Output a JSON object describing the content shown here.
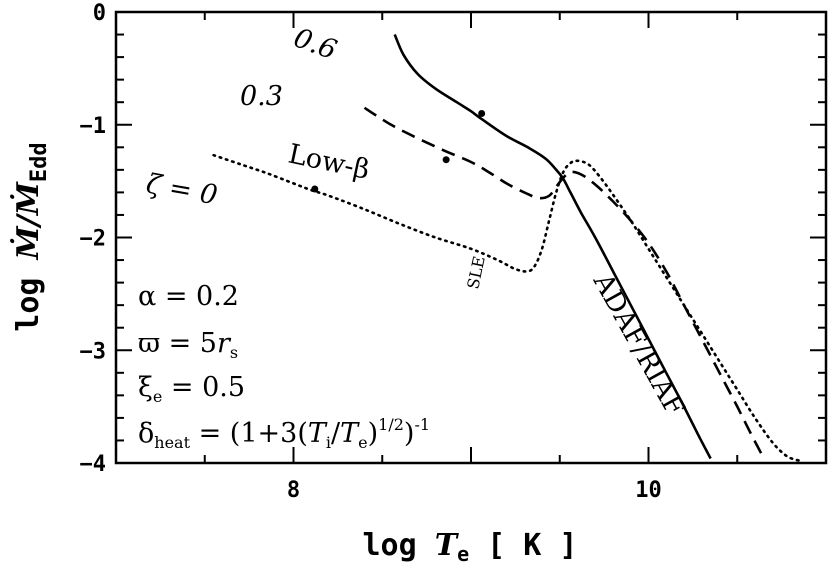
{
  "chart_data": {
    "type": "line",
    "xlabel_main": "log ",
    "xlabel_var": "T",
    "xlabel_sub": "e",
    "xlabel_unit": " [ K ]",
    "ylabel_main": "log ",
    "ylabel_var": "Ṁ/Ṁ",
    "ylabel_sub": "Edd",
    "xlim": [
      7.0,
      11.0
    ],
    "ylim": [
      -4,
      0
    ],
    "xticks": [
      {
        "value": 8,
        "label": "8"
      },
      {
        "value": 10,
        "label": "10"
      }
    ],
    "yticks": [
      {
        "value": 0,
        "label": "0"
      },
      {
        "value": -1,
        "label": "−1"
      },
      {
        "value": -2,
        "label": "−2"
      },
      {
        "value": -3,
        "label": "−3"
      },
      {
        "value": -4,
        "label": "−4"
      }
    ],
    "series": [
      {
        "name": "0.6",
        "style": "solid",
        "x": [
          8.57,
          8.62,
          8.7,
          8.8,
          8.92,
          9.0,
          9.06,
          9.2,
          9.32,
          9.42,
          9.48,
          9.52,
          9.56,
          9.62,
          9.7,
          9.8,
          9.9,
          10.0,
          10.1,
          10.2,
          10.28,
          10.35
        ],
        "y": [
          -0.2,
          -0.38,
          -0.55,
          -0.68,
          -0.8,
          -0.88,
          -0.95,
          -1.1,
          -1.2,
          -1.3,
          -1.4,
          -1.48,
          -1.6,
          -1.78,
          -2.0,
          -2.3,
          -2.6,
          -2.9,
          -3.2,
          -3.5,
          -3.75,
          -3.96
        ]
      },
      {
        "name": "0.3",
        "style": "dashed",
        "x": [
          8.4,
          8.55,
          8.7,
          8.85,
          9.0,
          9.1,
          9.2,
          9.3,
          9.38,
          9.44,
          9.48,
          9.52,
          9.56,
          9.62,
          9.7,
          9.8,
          9.9,
          10.0,
          10.1,
          10.2,
          10.3,
          10.4,
          10.5,
          10.58,
          10.65
        ],
        "y": [
          -0.85,
          -1.0,
          -1.12,
          -1.23,
          -1.33,
          -1.42,
          -1.52,
          -1.6,
          -1.65,
          -1.63,
          -1.55,
          -1.47,
          -1.42,
          -1.44,
          -1.53,
          -1.68,
          -1.85,
          -2.05,
          -2.3,
          -2.6,
          -2.9,
          -3.2,
          -3.5,
          -3.75,
          -3.96
        ]
      },
      {
        "name": "ζ = 0",
        "style": "dotted",
        "x": [
          7.55,
          7.7,
          7.85,
          8.0,
          8.1,
          8.2,
          8.4,
          8.6,
          8.8,
          9.0,
          9.15,
          9.25,
          9.32,
          9.36,
          9.4,
          9.44,
          9.48,
          9.52,
          9.56,
          9.6,
          9.66,
          9.72,
          9.8,
          9.9,
          10.0,
          10.1,
          10.2,
          10.3,
          10.4,
          10.5,
          10.6,
          10.7,
          10.78,
          10.85
        ],
        "y": [
          -1.27,
          -1.35,
          -1.43,
          -1.52,
          -1.58,
          -1.63,
          -1.75,
          -1.88,
          -2.0,
          -2.1,
          -2.2,
          -2.28,
          -2.3,
          -2.25,
          -2.1,
          -1.85,
          -1.6,
          -1.42,
          -1.34,
          -1.32,
          -1.35,
          -1.45,
          -1.62,
          -1.85,
          -2.1,
          -2.35,
          -2.6,
          -2.85,
          -3.1,
          -3.35,
          -3.6,
          -3.82,
          -3.94,
          -3.98
        ]
      }
    ],
    "markers": [
      {
        "x": 8.12,
        "y": -1.57
      },
      {
        "x": 8.86,
        "y": -1.31
      },
      {
        "x": 9.06,
        "y": -0.9
      }
    ],
    "annotations": {
      "label_06": "0.6",
      "label_03": "0.3",
      "label_zeta_sym": "ζ = ",
      "label_zeta_val": "0",
      "low_beta": "Low-β",
      "sle": "SLE",
      "adaf": "ADAF/RIAF"
    },
    "params": {
      "alpha": "α = 0.2",
      "varpi_prefix": "ϖ = 5",
      "varpi_var": "r",
      "varpi_sub": "s",
      "xi_main": "ξ",
      "xi_sub": "e",
      "xi_rest": " = 0.5",
      "delta_main": "δ",
      "delta_sub": "heat",
      "delta_eq": " = (1+3(",
      "delta_ti": "T",
      "delta_i": "i",
      "delta_slash": "/",
      "delta_te": "T",
      "delta_e": "e",
      "delta_close": ")",
      "delta_exp1": "1/2",
      "delta_close2": ")",
      "delta_exp2": "-1"
    }
  }
}
